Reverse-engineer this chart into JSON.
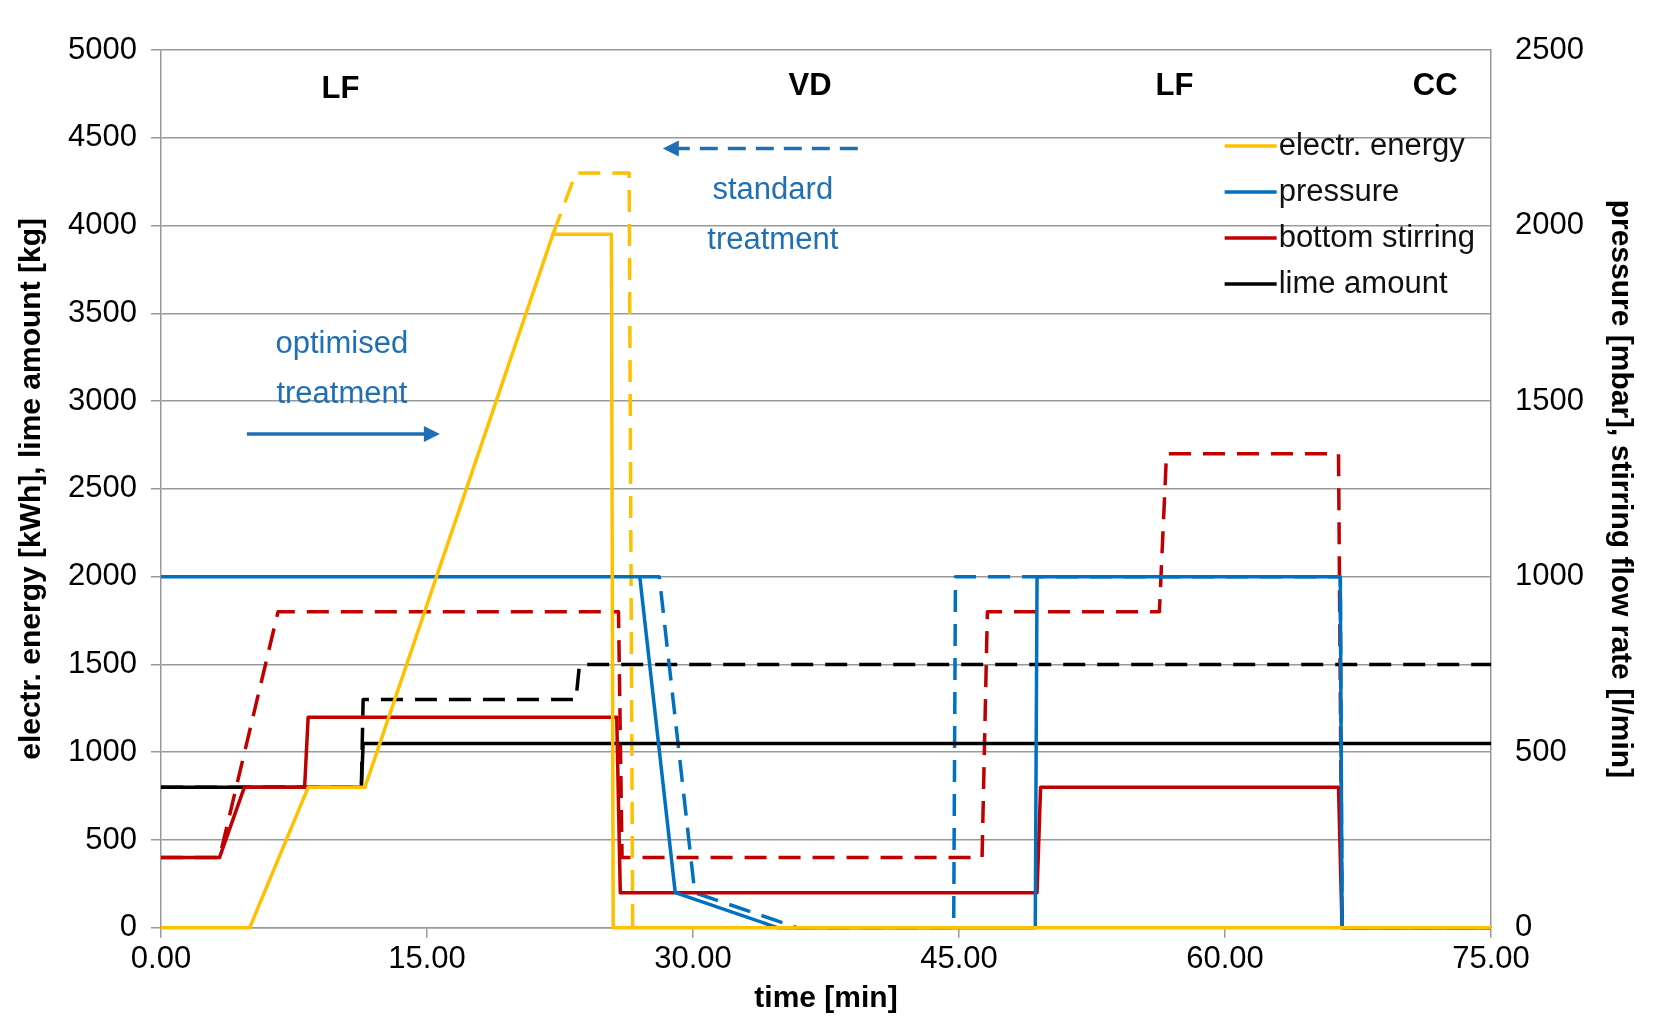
{
  "chart_data": {
    "type": "line",
    "xlabel": "time [min]",
    "ylabel": "electr. energy [kWh], lime amount [kg]",
    "y2label": "pressure [mbar], stirring flow rate [l/min]",
    "xlim": [
      0,
      75
    ],
    "xticks": [
      {
        "value": 0,
        "label": "0.00"
      },
      {
        "value": 15,
        "label": "15.00"
      },
      {
        "value": 30,
        "label": "30.00"
      },
      {
        "value": 45,
        "label": "45.00"
      },
      {
        "value": 60,
        "label": "60.00"
      },
      {
        "value": 75,
        "label": "75.00"
      }
    ],
    "ylim": [
      0,
      5000
    ],
    "yticks": [
      0,
      500,
      1000,
      1500,
      2000,
      2500,
      3000,
      3500,
      4000,
      4500,
      5000
    ],
    "y2lim": [
      0,
      2500
    ],
    "y2ticks": [
      0,
      500,
      1000,
      1500,
      2000,
      2500
    ],
    "grid": "y",
    "legend": "top right",
    "marker": "none",
    "series": [
      {
        "name": "electr. energy",
        "color": "#ffc000",
        "line_style": "solid",
        "x": [
          0,
          5,
          8.3,
          11.5,
          22.1,
          25.4,
          25.5,
          75
        ],
        "values": [
          0,
          0,
          800,
          800,
          3950,
          3950,
          0,
          0
        ]
      },
      {
        "name": "pressure",
        "color": "#0070c0",
        "line_style": "solid",
        "axis": "y2",
        "x": [
          0,
          27,
          29,
          34.8,
          49.3,
          49.4,
          66.5,
          66.6,
          75
        ],
        "values": [
          1000,
          1000,
          100,
          0,
          0,
          1000,
          1000,
          0,
          0
        ]
      },
      {
        "name": "bottom stirring",
        "color": "#c00000",
        "line_style": "solid",
        "axis": "y2",
        "x": [
          0,
          3.3,
          4.7,
          8.1,
          8.3,
          25.7,
          25.9,
          49.4,
          49.6,
          66.4,
          66.6,
          75
        ],
        "values": [
          200,
          200,
          400,
          400,
          600,
          600,
          100,
          100,
          400,
          400,
          0,
          0
        ]
      },
      {
        "name": "lime amount",
        "color": "#000000",
        "line_style": "solid",
        "x": [
          0,
          11.3,
          11.4,
          75
        ],
        "values": [
          800,
          800,
          1050,
          1050
        ]
      },
      {
        "color": "#ffc000",
        "line_style": "dashed",
        "x": [
          22.1,
          23.4,
          26.4,
          26.6
        ],
        "values": [
          3950,
          4300,
          4300,
          0
        ]
      },
      {
        "color": "#0070c0",
        "line_style": "dashed",
        "axis": "y2",
        "x": [
          27,
          28.1,
          30.1,
          35.9,
          44.7,
          44.8,
          66.5,
          66.6,
          75
        ],
        "values": [
          1000,
          1000,
          100,
          0,
          0,
          1000,
          1000,
          0,
          0
        ]
      },
      {
        "color": "#c00000",
        "line_style": "dashed",
        "axis": "y2",
        "x": [
          0,
          3.3,
          6.6,
          25.8,
          26,
          46.3,
          46.6,
          56.3,
          56.7,
          66.4,
          66.6,
          75
        ],
        "values": [
          200,
          200,
          900,
          900,
          200,
          200,
          900,
          900,
          1350,
          1350,
          0,
          0
        ]
      },
      {
        "color": "#000000",
        "line_style": "dashed",
        "x": [
          0,
          11.3,
          11.4,
          23.4,
          23.6,
          75
        ],
        "values": [
          800,
          800,
          1300,
          1300,
          1500,
          1500
        ]
      }
    ],
    "annotations": [
      "LF",
      "VD",
      "LF",
      "CC",
      "optimised treatment",
      "standard treatment"
    ]
  }
}
